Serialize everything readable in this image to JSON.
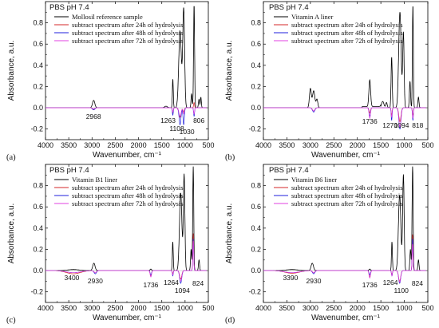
{
  "chart_data": [
    {
      "type": "line",
      "panel_label": "(a)",
      "condition": "PBS pH 7.4",
      "xlabel": "Wavenumber, cm⁻¹",
      "ylabel": "Absorbance, a.u.",
      "xlim": [
        4000,
        500
      ],
      "ylim": [
        -0.3,
        1.0
      ],
      "xticks": [
        "4000",
        "3500",
        "3000",
        "2500",
        "2000",
        "1500",
        "1000",
        "500"
      ],
      "yticks": [
        "-0.2",
        "0.0",
        "0.2",
        "0.4",
        "0.6",
        "0.8"
      ],
      "legend_position": "top-left",
      "series": [
        {
          "name": "Mollosil reference sample",
          "color": "#000000"
        },
        {
          "name": "subtract spectrum after 24h of hydrolysis",
          "color": "#d62728"
        },
        {
          "name": "subtract spectrum after 48h of hydrolysis",
          "color": "#1f1fdc"
        },
        {
          "name": "subtract spectrum after 72h of hydrolysis",
          "color": "#e040e0"
        }
      ],
      "annotations": [
        {
          "text": "2968",
          "x": 2968
        },
        {
          "text": "1263",
          "x": 1263
        },
        {
          "text": "1108",
          "x": 1108
        },
        {
          "text": "1030",
          "x": 1030
        },
        {
          "text": "806",
          "x": 806
        }
      ]
    },
    {
      "type": "line",
      "panel_label": "(b)",
      "condition": "PBS pH 7.4",
      "xlabel": "Wavenumber, cm⁻¹",
      "ylabel": "Absorbance, a.u.",
      "xlim": [
        4000,
        500
      ],
      "ylim": [
        -0.3,
        1.0
      ],
      "xticks": [
        "4000",
        "3500",
        "3000",
        "2500",
        "2000",
        "1500",
        "1000",
        "500"
      ],
      "yticks": [
        "-0.2",
        "0.0",
        "0.2",
        "0.4",
        "0.6",
        "0.8"
      ],
      "legend_position": "top-left",
      "series": [
        {
          "name": "Vitamin A liner",
          "color": "#000000"
        },
        {
          "name": "subtract spectrum after 24h of hydrolysis",
          "color": "#d62728"
        },
        {
          "name": "subtract spectrum after 48h of hydrolysis",
          "color": "#1f1fdc"
        },
        {
          "name": "subtract spectrum after 72h of hydrolysis",
          "color": "#e040e0"
        }
      ],
      "annotations": [
        {
          "text": "1736",
          "x": 1736
        },
        {
          "text": "1270",
          "x": 1270
        },
        {
          "text": "1094",
          "x": 1094
        },
        {
          "text": "818",
          "x": 818
        }
      ]
    },
    {
      "type": "line",
      "panel_label": "(c)",
      "condition": "PBS pH 7.4",
      "xlabel": "Wavenumber, cm⁻¹",
      "ylabel": "Absorbance, a.u.",
      "xlim": [
        4000,
        500
      ],
      "ylim": [
        -0.3,
        1.0
      ],
      "xticks": [
        "4000",
        "3500",
        "3000",
        "2500",
        "2000",
        "1500",
        "1000",
        "500"
      ],
      "yticks": [
        "-0.2",
        "0.0",
        "0.2",
        "0.4",
        "0.6",
        "0.8"
      ],
      "legend_position": "top-left",
      "series": [
        {
          "name": "Vitamin B1 liner",
          "color": "#000000"
        },
        {
          "name": "subtract spectrum after 24h of hydrolysis",
          "color": "#d62728"
        },
        {
          "name": "subtract spectrum after 48h of hydrolysis",
          "color": "#1f1fdc"
        },
        {
          "name": "subtract spectrum after 72h of hydrolysis",
          "color": "#e040e0"
        }
      ],
      "annotations": [
        {
          "text": "3400",
          "x": 3400
        },
        {
          "text": "2930",
          "x": 2930
        },
        {
          "text": "1736",
          "x": 1736
        },
        {
          "text": "1264",
          "x": 1264
        },
        {
          "text": "1094",
          "x": 1094
        },
        {
          "text": "824",
          "x": 824
        }
      ]
    },
    {
      "type": "line",
      "panel_label": "(d)",
      "condition": "PBS pH 7.4",
      "xlabel": "Wavenumber, cm⁻¹",
      "ylabel": "Absorbance, a.u.",
      "xlim": [
        4000,
        500
      ],
      "ylim": [
        -0.3,
        1.0
      ],
      "xticks": [
        "4000",
        "3500",
        "3000",
        "2500",
        "2000",
        "1500",
        "1000",
        "500"
      ],
      "yticks": [
        "-0.2",
        "0.0",
        "0.2",
        "0.4",
        "0.6",
        "0.8"
      ],
      "legend_position": "top-left",
      "series": [
        {
          "name": "Vitamin B6 liner",
          "color": "#000000"
        },
        {
          "name": "subtract spectrum after 24h of hydrolysis",
          "color": "#d62728"
        },
        {
          "name": "subtract spectrum after 48h of hydrolysis",
          "color": "#1f1fdc"
        },
        {
          "name": "subtract spectrum after 72h of hydrolysis",
          "color": "#e040e0"
        }
      ],
      "annotations": [
        {
          "text": "3390",
          "x": 3390
        },
        {
          "text": "2930",
          "x": 2930
        },
        {
          "text": "1736",
          "x": 1736
        },
        {
          "text": "1264",
          "x": 1264
        },
        {
          "text": "1100",
          "x": 1100
        },
        {
          "text": "824",
          "x": 824
        }
      ]
    }
  ]
}
